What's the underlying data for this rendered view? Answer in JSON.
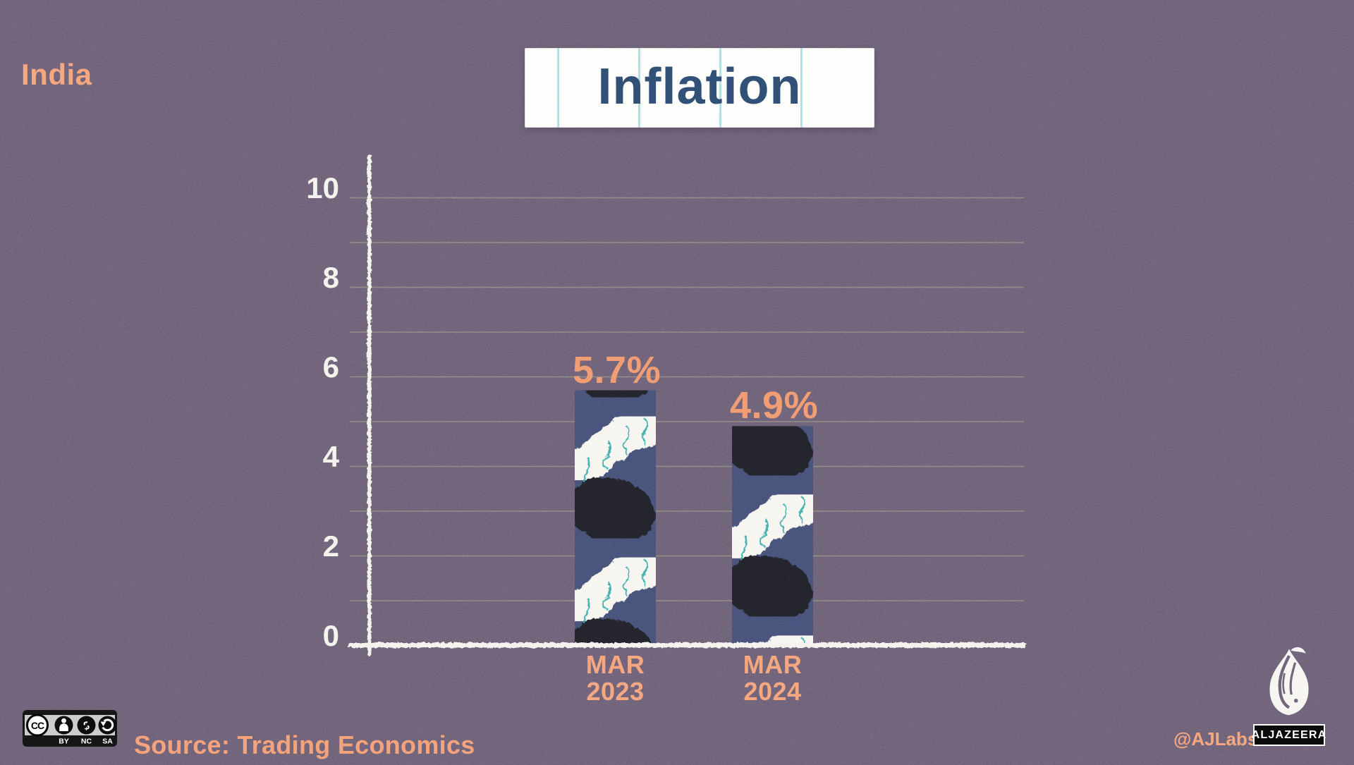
{
  "country_label": "India",
  "chart_data": {
    "type": "bar",
    "title": "Inflation",
    "categories": [
      [
        "MAR",
        "2023"
      ],
      [
        "MAR",
        "2024"
      ]
    ],
    "values": [
      5.7,
      4.9
    ],
    "value_labels": [
      "5.7%",
      "4.9%"
    ],
    "ylim": [
      0,
      10
    ],
    "yticks": [
      0,
      2,
      4,
      6,
      8,
      10
    ],
    "ytick_labels": [
      "0",
      "2",
      "4",
      "6",
      "8",
      "10"
    ],
    "grid_every": 1,
    "grid": "horizontal gridlines at every integer, olive, faint",
    "legend": null,
    "xlabel": "",
    "ylabel": ""
  },
  "source": {
    "text": "Source: Trading Economics"
  },
  "credit": {
    "handle": "@AJLabs"
  },
  "brand": {
    "wordmark": "ALJAZEERA"
  },
  "license": {
    "cc": "CC",
    "by": "BY",
    "nc": "NC",
    "sa": "SA",
    "nc_symbol": "$"
  },
  "colors": {
    "background": "#6a5e73",
    "accent_orange": "#f49b72",
    "value_label_orange": "#f0956c",
    "title_navy": "#2d4b6e",
    "bar_navy": "#454f75",
    "bar_blob_black": "#23242b",
    "squiggle_teal": "#2ea3a8",
    "axis_white": "#f4f2ec",
    "gridline_olive": "#abad87",
    "paper_white": "#fdfdfb",
    "paper_rule_blue": "#aedde4"
  }
}
